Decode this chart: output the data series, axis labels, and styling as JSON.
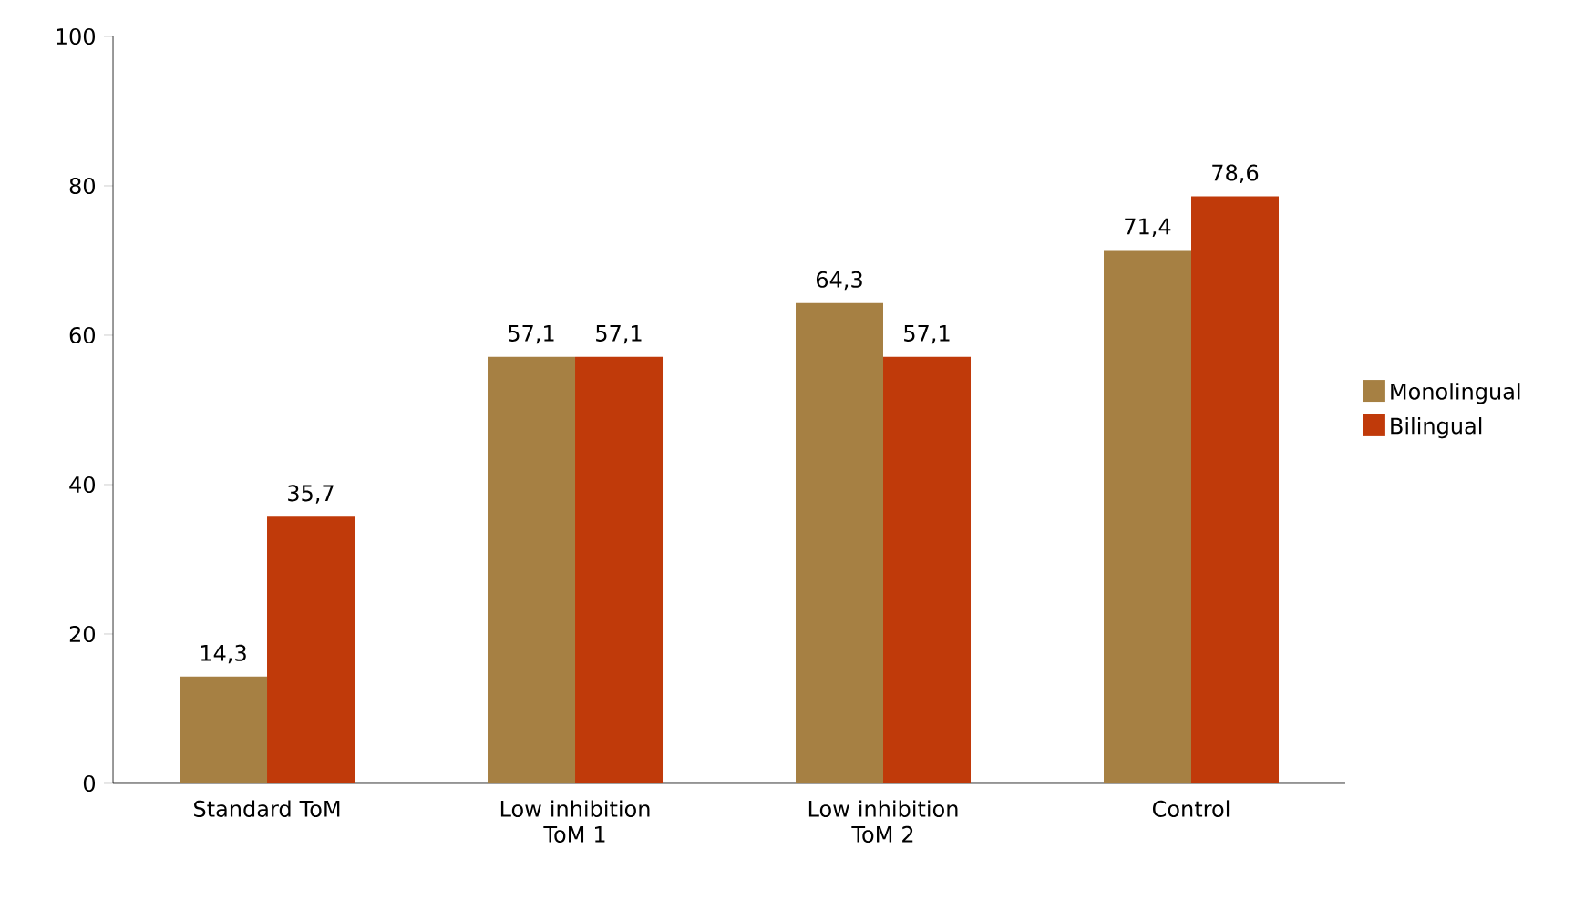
{
  "chart_data": {
    "type": "bar",
    "categories": [
      "Standard ToM",
      "Low inhibition ToM 1",
      "Low inhibition ToM 2",
      "Control"
    ],
    "series": [
      {
        "name": "Monolingual",
        "color": "#a68043",
        "values": [
          14.3,
          57.1,
          64.3,
          71.4
        ],
        "value_labels": [
          "14,3",
          "57,1",
          "64,3",
          "71,4"
        ]
      },
      {
        "name": "Bilingual",
        "color": "#c03a0a",
        "values": [
          35.7,
          57.1,
          57.1,
          78.6
        ],
        "value_labels": [
          "35,7",
          "57,1",
          "57,1",
          "78,6"
        ]
      }
    ],
    "ylim": [
      0,
      100
    ],
    "yticks": [
      0,
      20,
      40,
      60,
      80,
      100
    ],
    "grid": false,
    "legend": "right"
  }
}
